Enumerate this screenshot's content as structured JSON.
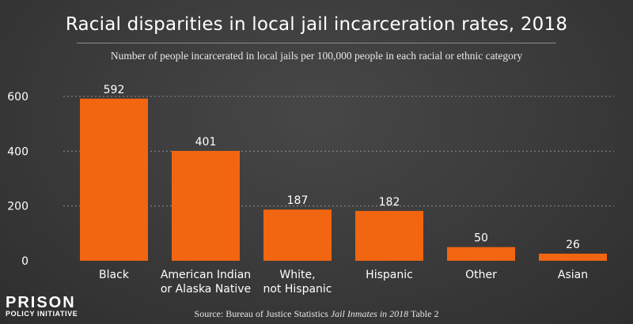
{
  "header": {
    "title": "Racial disparities in local jail incarceration rates, 2018",
    "subtitle": "Number of people incarcerated in local jails per 100,000 people in each racial or ethnic category"
  },
  "footer": {
    "logo_line1": "PRISON",
    "logo_line2": "POLICY INITIATIVE",
    "source_prefix": "Source: Bureau of Justice Statistics ",
    "source_title": "Jail Inmates in 2018",
    "source_suffix": " Table 2"
  },
  "colors": {
    "bar": "#f26511",
    "grid": "#8c8c8c",
    "text": "#ffffff"
  },
  "chart_data": {
    "type": "bar",
    "title": "Racial disparities in local jail incarceration rates, 2018",
    "subtitle": "Number of people incarcerated in local jails per 100,000 people in each racial or ethnic category",
    "categories": [
      [
        "Black"
      ],
      [
        "American Indian",
        "or Alaska Native"
      ],
      [
        "White,",
        "not Hispanic"
      ],
      [
        "Hispanic"
      ],
      [
        "Other"
      ],
      [
        "Asian"
      ]
    ],
    "values": [
      592,
      401,
      187,
      182,
      50,
      26
    ],
    "value_labels": [
      "592",
      "401",
      "187",
      "182",
      "50",
      "26"
    ],
    "yticks": [
      0,
      200,
      400,
      600
    ],
    "ylim": [
      0,
      650
    ],
    "grid": true,
    "legend": "none"
  }
}
